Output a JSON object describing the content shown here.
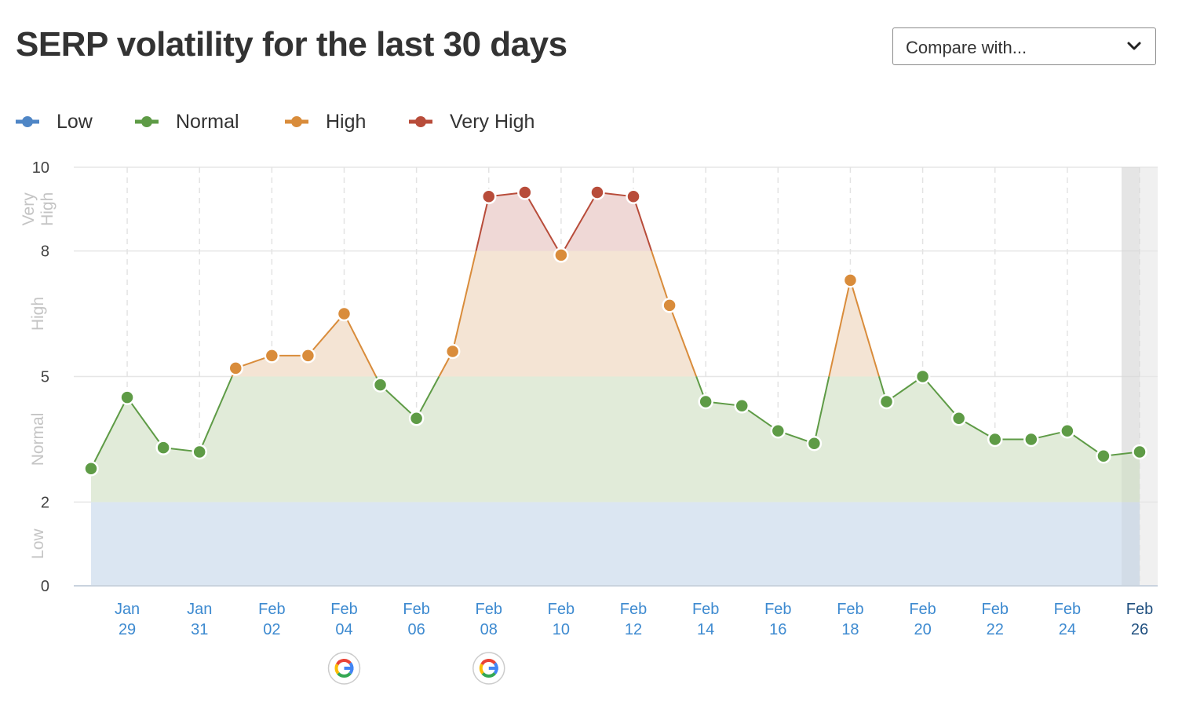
{
  "header": {
    "title": "SERP volatility for the last 30 days",
    "compare_label": "Compare with...",
    "compare_icon": "chevron-down-icon"
  },
  "legend": [
    {
      "name": "Low",
      "color": "#4f86c6"
    },
    {
      "name": "Normal",
      "color": "#5e9b46"
    },
    {
      "name": "High",
      "color": "#d98c3b"
    },
    {
      "name": "Very High",
      "color": "#b84c3a"
    }
  ],
  "chart_data": {
    "type": "line",
    "ylim": [
      0,
      10
    ],
    "yticks": [
      0,
      2,
      5,
      8,
      10
    ],
    "bands": [
      {
        "label": "Low",
        "from": 0,
        "to": 2,
        "color": "#dbe6f2"
      },
      {
        "label": "Normal",
        "from": 2,
        "to": 5,
        "color": "#e1ebd9"
      },
      {
        "label": "High",
        "from": 5,
        "to": 8,
        "color": "#f4e4d4"
      },
      {
        "label": "Very High",
        "from": 8,
        "to": 10,
        "color": "#efd8d6"
      }
    ],
    "x": [
      "Jan 28",
      "Jan 29",
      "Jan 30",
      "Jan 31",
      "Feb 01",
      "Feb 02",
      "Feb 03",
      "Feb 04",
      "Feb 05",
      "Feb 06",
      "Feb 07",
      "Feb 08",
      "Feb 09",
      "Feb 10",
      "Feb 11",
      "Feb 12",
      "Feb 13",
      "Feb 14",
      "Feb 15",
      "Feb 16",
      "Feb 17",
      "Feb 18",
      "Feb 19",
      "Feb 20",
      "Feb 21",
      "Feb 22",
      "Feb 23",
      "Feb 24",
      "Feb 25",
      "Feb 26"
    ],
    "values": [
      2.8,
      4.5,
      3.3,
      3.2,
      5.2,
      5.5,
      5.5,
      6.5,
      4.8,
      4.0,
      5.6,
      9.3,
      9.4,
      7.9,
      9.4,
      9.3,
      6.7,
      4.4,
      4.3,
      3.7,
      3.4,
      7.3,
      4.4,
      5.0,
      4.0,
      3.5,
      3.5,
      3.7,
      3.1,
      3.2
    ],
    "xtick_labels": [
      {
        "m": "Jan",
        "d": "29"
      },
      {
        "m": "Jan",
        "d": "31"
      },
      {
        "m": "Feb",
        "d": "02"
      },
      {
        "m": "Feb",
        "d": "04"
      },
      {
        "m": "Feb",
        "d": "06"
      },
      {
        "m": "Feb",
        "d": "08"
      },
      {
        "m": "Feb",
        "d": "10"
      },
      {
        "m": "Feb",
        "d": "12"
      },
      {
        "m": "Feb",
        "d": "14"
      },
      {
        "m": "Feb",
        "d": "16"
      },
      {
        "m": "Feb",
        "d": "18"
      },
      {
        "m": "Feb",
        "d": "20"
      },
      {
        "m": "Feb",
        "d": "22"
      },
      {
        "m": "Feb",
        "d": "24"
      },
      {
        "m": "Feb",
        "d": "26"
      }
    ],
    "highlighted_last": "Feb 26",
    "google_updates": [
      "Feb 04",
      "Feb 08"
    ],
    "grid": true
  }
}
